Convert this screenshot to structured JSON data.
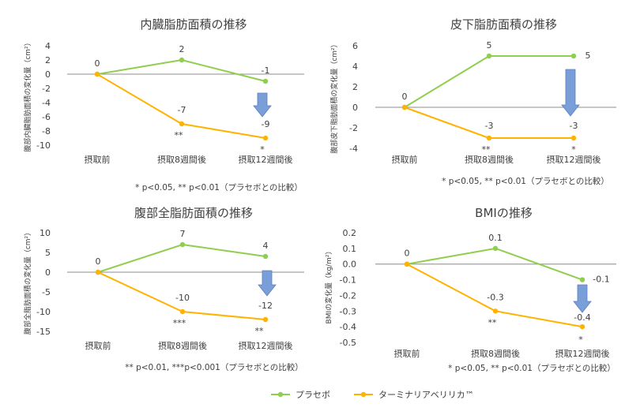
{
  "categories": [
    "摂取前",
    "摂取8週間後",
    "摂取12週間後"
  ],
  "legend": [
    {
      "name": "プラセボ",
      "color": "#8fce4e"
    },
    {
      "name": "ターミナリアベリリカ™",
      "color": "#ffb300"
    }
  ],
  "arrow_color": "#7a9fd8",
  "chart_data": [
    {
      "type": "line",
      "title": "内臓脂肪面積の推移",
      "ylabel": "腹部内臓脂肪面積の変化量（cm²）",
      "ylim": [
        -10,
        4
      ],
      "yticks": [
        "4",
        "2",
        "0",
        "-2",
        "-4",
        "-6",
        "-8",
        "-10"
      ],
      "series": [
        {
          "name": "プラセボ",
          "values": [
            0,
            2,
            -1
          ],
          "labels": [
            "0",
            "2",
            "-1"
          ]
        },
        {
          "name": "ターミナリアベリリカ™",
          "values": [
            0,
            -7,
            -9
          ],
          "labels": [
            "",
            "-7",
            "-9"
          ]
        }
      ],
      "significance": [
        "",
        "**",
        "*"
      ],
      "footnote": "* p<0.05, ** p<0.01（プラセボとの比較）"
    },
    {
      "type": "line",
      "title": "皮下脂肪面積の推移",
      "ylabel": "腹部皮下脂肪面積の変化量（cm²）",
      "ylim": [
        -4,
        6
      ],
      "yticks": [
        "6",
        "4",
        "2",
        "0",
        "-2",
        "-4"
      ],
      "series": [
        {
          "name": "プラセボ",
          "values": [
            0,
            5,
            5
          ],
          "labels": [
            "0",
            "5",
            "5"
          ]
        },
        {
          "name": "ターミナリアベリリカ™",
          "values": [
            0,
            -3,
            -3
          ],
          "labels": [
            "",
            "-3",
            "-3"
          ]
        }
      ],
      "significance": [
        "",
        "**",
        "*"
      ],
      "footnote": "* p<0.05, ** p<0.01（プラセボとの比較）"
    },
    {
      "type": "line",
      "title": "腹部全脂肪面積の推移",
      "ylabel": "腹部全脂肪面積の変化量（cm²）",
      "ylim": [
        -15,
        10
      ],
      "yticks": [
        "10",
        "5",
        "0",
        "-5",
        "-10",
        "-15"
      ],
      "series": [
        {
          "name": "プラセボ",
          "values": [
            0,
            7,
            4
          ],
          "labels": [
            "0",
            "7",
            "4"
          ]
        },
        {
          "name": "ターミナリアベリリカ™",
          "values": [
            0,
            -10,
            -12
          ],
          "labels": [
            "",
            "-10",
            "-12"
          ]
        }
      ],
      "significance": [
        "",
        "***",
        "**"
      ],
      "footnote": "** p<0.01, ***p<0.001（プラセボとの比較）"
    },
    {
      "type": "line",
      "title": "BMIの推移",
      "ylabel": "BMIの変化量（kg/m²）",
      "ylim": [
        -0.5,
        0.2
      ],
      "yticks": [
        "0.2",
        "0.1",
        "0.0",
        "-0.1",
        "-0.2",
        "-0.3",
        "-0.4",
        "-0.5"
      ],
      "series": [
        {
          "name": "プラセボ",
          "values": [
            0,
            0.1,
            -0.1
          ],
          "labels": [
            "0",
            "0.1",
            "-0.1"
          ]
        },
        {
          "name": "ターミナリアベリリカ™",
          "values": [
            0,
            -0.3,
            -0.4
          ],
          "labels": [
            "",
            "-0.3",
            "-0.4"
          ]
        }
      ],
      "significance": [
        "",
        "**",
        "*"
      ],
      "footnote": "* p<0.05, ** p<0.01（プラセボとの比較）"
    }
  ]
}
